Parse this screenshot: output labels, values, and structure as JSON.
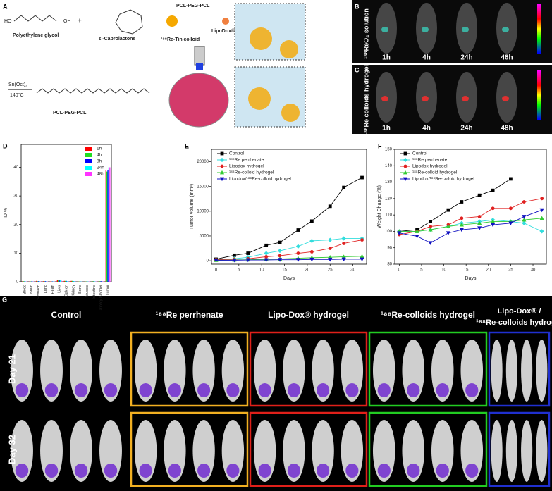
{
  "panel_letters": [
    "A",
    "B",
    "C",
    "D",
    "E",
    "F",
    "G"
  ],
  "scheme": {
    "peg": "Polyethylene glycol",
    "plus": "+",
    "caprolactone": "ε -Caprolactone",
    "catalyst": "Sn(Oct)₂",
    "temperature": "140°C",
    "product": "PCL-PEG-PCL",
    "polymer": "PCL-PEG-PCL",
    "colloid": "¹⁸⁸Re-Tin colloid",
    "lipodox": "LipoDox®"
  },
  "imaging": {
    "b_label": "¹⁸⁸ReO₄ solution",
    "c_label": "¹⁸⁸Re colloids hydrogel",
    "times": [
      "1h",
      "4h",
      "24h",
      "48h"
    ]
  },
  "bioluminescence": {
    "groups": [
      {
        "name": "Control",
        "color": null
      },
      {
        "name": "¹⁸⁸Re perrhenate",
        "color": "#f2b022"
      },
      {
        "name": "Lipo-Dox® hydrogel",
        "color": "#e0201a"
      },
      {
        "name": "¹⁸⁸Re-colloids hydrogel",
        "color": "#22cc22"
      },
      {
        "name": "Lipo-Dox® /",
        "name2": "¹⁸⁸Re-colloids hydrogel",
        "color": "#2030d0"
      }
    ],
    "rows": [
      "Day 21",
      "Day 32"
    ]
  },
  "chart_data": [
    {
      "type": "bar",
      "y_label": "ID %",
      "categories": [
        "Blood",
        "Brain",
        "Stomach",
        "Lung",
        "Heart",
        "Liver",
        "Spleen",
        "Kidney",
        "Bone",
        "Muscle",
        "Intestine",
        "Urinary Bladder",
        "Tumor"
      ],
      "series": [
        {
          "name": "1h",
          "color": "#ff0000",
          "values": [
            0.2,
            0.1,
            0.3,
            0.2,
            0.1,
            0.6,
            0.3,
            0.3,
            0.1,
            0.1,
            0.2,
            0.2,
            39
          ]
        },
        {
          "name": "4h",
          "color": "#22dd22",
          "values": [
            0.2,
            0.1,
            0.2,
            0.2,
            0.1,
            0.7,
            0.3,
            0.3,
            0.1,
            0.1,
            0.2,
            0.2,
            38.5
          ]
        },
        {
          "name": "8h",
          "color": "#0000ff",
          "values": [
            0.1,
            0.1,
            0.2,
            0.2,
            0.1,
            0.6,
            0.3,
            0.2,
            0.1,
            0.1,
            0.2,
            0.2,
            39
          ]
        },
        {
          "name": "24h",
          "color": "#00ffff",
          "values": [
            0.1,
            0.1,
            0.2,
            0.1,
            0.1,
            0.5,
            0.2,
            0.2,
            0.1,
            0.1,
            0.1,
            0.1,
            40
          ]
        },
        {
          "name": "48h",
          "color": "#ff33ff",
          "values": [
            0.1,
            0.1,
            0.1,
            0.1,
            0.1,
            0.4,
            0.2,
            0.2,
            0.1,
            0.1,
            0.1,
            0.1,
            40
          ]
        }
      ],
      "ylim": [
        0,
        48
      ],
      "yticks": [
        0,
        10,
        20,
        30,
        40
      ],
      "legend": "upper right"
    },
    {
      "type": "line",
      "y_label": "Tumor volume (mm³)",
      "x_label": "Days",
      "x": [
        0,
        4,
        7,
        11,
        14,
        18,
        21,
        25,
        28,
        32
      ],
      "series": [
        {
          "name": "Control",
          "color": "#000000",
          "marker": "square",
          "values": [
            300,
            1100,
            1500,
            3100,
            3700,
            6200,
            8000,
            11000,
            14800,
            16800
          ]
        },
        {
          "name": "¹⁸⁸Re perrhenate",
          "color": "#33dddd",
          "marker": "diamond",
          "values": [
            200,
            400,
            700,
            1500,
            2000,
            2900,
            4000,
            4200,
            4500,
            4500
          ]
        },
        {
          "name": "Lipodox hydrogel",
          "color": "#e02020",
          "marker": "circle",
          "values": [
            200,
            300,
            400,
            800,
            1000,
            1500,
            1800,
            2500,
            3500,
            4200
          ]
        },
        {
          "name": "¹⁸⁸Re-colloid hydrogel",
          "color": "#33cc33",
          "marker": "triangle-up",
          "values": [
            100,
            150,
            200,
            300,
            350,
            500,
            600,
            700,
            800,
            900
          ]
        },
        {
          "name": "Lipodox/¹⁸⁸Re-colloid hydrogel",
          "color": "#1010c0",
          "marker": "triangle-down",
          "values": [
            100,
            100,
            150,
            150,
            200,
            200,
            250,
            250,
            300,
            300
          ]
        }
      ],
      "xlim": [
        -1,
        33
      ],
      "xticks": [
        0,
        5,
        10,
        15,
        20,
        25,
        30
      ],
      "ylim": [
        -700,
        22500
      ],
      "yticks": [
        0,
        5000,
        10000,
        15000,
        20000
      ],
      "legend": "upper left"
    },
    {
      "type": "line",
      "y_label": "Weight Change (%)",
      "x_label": "Days",
      "x": [
        0,
        4,
        7,
        11,
        14,
        18,
        21,
        25,
        28,
        32
      ],
      "series": [
        {
          "name": "Control",
          "color": "#000000",
          "marker": "square",
          "values": [
            100,
            101,
            106,
            113,
            118,
            122,
            125,
            132,
            null,
            null
          ]
        },
        {
          "name": "¹⁸⁸Re perrhenate",
          "color": "#33dddd",
          "marker": "diamond",
          "values": [
            100,
            100,
            101,
            103,
            105,
            106,
            107,
            106,
            105,
            100
          ]
        },
        {
          "name": "Lipodox hydrogel",
          "color": "#e02020",
          "marker": "circle",
          "values": [
            98,
            100,
            103,
            104,
            108,
            109,
            114,
            114,
            118,
            120
          ]
        },
        {
          "name": "¹⁸⁸Re-colloid hydrogel",
          "color": "#33cc33",
          "marker": "triangle-up",
          "values": [
            100,
            100,
            101,
            103,
            104,
            105,
            106,
            106,
            107,
            108
          ]
        },
        {
          "name": "Lipodox/¹⁸⁸Re-colloid hydrogel",
          "color": "#1010c0",
          "marker": "triangle-down",
          "values": [
            99,
            97,
            93,
            99,
            101,
            102,
            104,
            105,
            109,
            113
          ]
        }
      ],
      "xlim": [
        -1,
        33
      ],
      "xticks": [
        0,
        5,
        10,
        15,
        20,
        25,
        30
      ],
      "ylim": [
        80,
        150
      ],
      "yticks": [
        80,
        90,
        100,
        110,
        120,
        130,
        140,
        150
      ],
      "legend": "upper left"
    }
  ]
}
